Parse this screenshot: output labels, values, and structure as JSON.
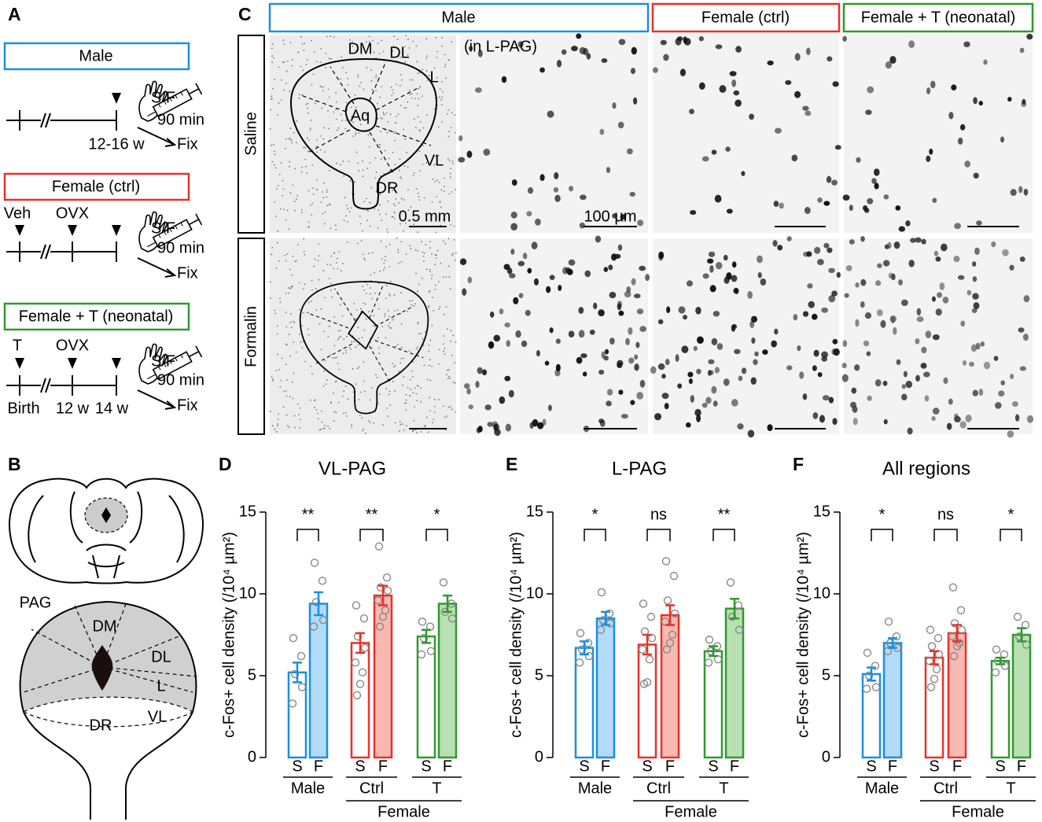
{
  "panel_a": {
    "label": "A",
    "timelines": [
      {
        "title": "Male",
        "above": [],
        "below": [
          "12-16 w"
        ],
        "stimulus": "S/F",
        "duration": "90 min",
        "fixation": "Fix"
      },
      {
        "title": "Female (ctrl)",
        "above": [
          "Veh",
          "OVX"
        ],
        "below": [],
        "stimulus": "S/F",
        "duration": "90 min",
        "fixation": "Fix"
      },
      {
        "title": "Female + T (neonatal)",
        "above": [
          "T",
          "OVX"
        ],
        "below": [
          "Birth",
          "12 w",
          "14 w"
        ],
        "stimulus": "S/F",
        "duration": "90 min",
        "fixation": "Fix"
      }
    ]
  },
  "panel_b": {
    "label": "B",
    "regions": [
      "PAG",
      "DM",
      "DL",
      "L",
      "VL",
      "DR"
    ]
  },
  "panel_c": {
    "label": "C",
    "columns": [
      "Male",
      "Female (ctrl)",
      "Female + T (neonatal)"
    ],
    "rows": [
      "Saline",
      "Formalin"
    ],
    "regions": [
      "DM",
      "DL",
      "L",
      "Aq",
      "VL",
      "DR"
    ],
    "inset": "(in L-PAG)",
    "scale_bars": [
      "0.5 mm",
      "100 µm"
    ]
  },
  "chart_data": [
    {
      "type": "bar",
      "panel": "D",
      "title": "VL-PAG",
      "y_label": "c-Fos+ cell density (/10⁴ µm²)",
      "categories": [
        "S",
        "F",
        "S",
        "F",
        "S",
        "F"
      ],
      "values": [
        5.2,
        9.4,
        7.0,
        9.9,
        7.4,
        9.4
      ],
      "errors": [
        0.6,
        0.7,
        0.6,
        0.6,
        0.4,
        0.5
      ],
      "points": [
        [
          7.3,
          6.2,
          5.1,
          4.3,
          3.3
        ],
        [
          11.9,
          10.8,
          9.5,
          8.4,
          8.0
        ],
        [
          9.3,
          8.5,
          7.4,
          6.7,
          5.8,
          5.2,
          4.5,
          3.8
        ],
        [
          12.9,
          11.0,
          10.4,
          10.2,
          9.6,
          9.0,
          8.6,
          8.0
        ],
        [
          8.3,
          8.0,
          7.3,
          6.5,
          6.3
        ],
        [
          10.7,
          9.4,
          8.9,
          8.5
        ]
      ],
      "group_labels": [
        "Male",
        "Ctrl",
        "T"
      ],
      "super_label": "Female",
      "significance": [
        "**",
        "**",
        "*"
      ],
      "group_colors": [
        "#1a8fe3",
        "#e8302a",
        "#2e9a2e"
      ],
      "fill_colors": [
        "#b3dbf7",
        "#f7b9b1",
        "#b9e0b2"
      ],
      "ylim": [
        0,
        15
      ],
      "yticks": [
        0,
        5,
        10,
        15
      ]
    },
    {
      "type": "bar",
      "panel": "E",
      "title": "L-PAG",
      "y_label": "c-Fos+ cell density (/10⁴ µm²)",
      "categories": [
        "S",
        "F",
        "S",
        "F",
        "S",
        "F"
      ],
      "values": [
        6.7,
        8.5,
        6.9,
        8.7,
        6.5,
        9.1
      ],
      "errors": [
        0.4,
        0.4,
        0.6,
        0.6,
        0.3,
        0.6
      ],
      "points": [
        [
          7.6,
          7.0,
          6.6,
          6.2,
          5.8
        ],
        [
          10.1,
          8.8,
          8.4,
          8.2,
          7.8
        ],
        [
          9.4,
          8.6,
          7.7,
          7.3,
          6.6,
          6.0,
          4.6,
          4.5
        ],
        [
          12.0,
          11.1,
          9.6,
          8.8,
          8.3,
          7.5,
          7.0,
          6.6
        ],
        [
          7.2,
          6.8,
          6.5,
          6.0,
          5.8
        ],
        [
          10.7,
          9.3,
          8.6,
          7.8
        ]
      ],
      "group_labels": [
        "Male",
        "Ctrl",
        "T"
      ],
      "super_label": "Female",
      "significance": [
        "*",
        "ns",
        "**"
      ],
      "group_colors": [
        "#1a8fe3",
        "#e8302a",
        "#2e9a2e"
      ],
      "fill_colors": [
        "#b3dbf7",
        "#f7b9b1",
        "#b9e0b2"
      ],
      "ylim": [
        0,
        15
      ],
      "yticks": [
        0,
        5,
        10,
        15
      ]
    },
    {
      "type": "bar",
      "panel": "F",
      "title": "All regions",
      "y_label": "c-Fos+ cell density (/10⁴ µm²)",
      "categories": [
        "S",
        "F",
        "S",
        "F",
        "S",
        "F"
      ],
      "values": [
        5.1,
        7.0,
        6.1,
        7.6,
        5.9,
        7.5
      ],
      "errors": [
        0.4,
        0.3,
        0.4,
        0.5,
        0.2,
        0.4
      ],
      "points": [
        [
          6.4,
          5.6,
          5.0,
          4.3,
          4.2
        ],
        [
          8.3,
          7.4,
          7.0,
          6.7,
          6.5
        ],
        [
          7.8,
          7.3,
          6.8,
          6.3,
          5.9,
          5.4,
          4.8,
          4.3
        ],
        [
          10.4,
          9.0,
          8.2,
          7.8,
          7.4,
          7.0,
          6.8,
          6.2
        ],
        [
          6.6,
          6.3,
          5.9,
          5.6,
          5.2
        ],
        [
          8.6,
          8.1,
          7.4,
          6.9
        ]
      ],
      "group_labels": [
        "Male",
        "Ctrl",
        "T"
      ],
      "super_label": "Female",
      "significance": [
        "*",
        "ns",
        "*"
      ],
      "group_colors": [
        "#1a8fe3",
        "#e8302a",
        "#2e9a2e"
      ],
      "fill_colors": [
        "#b3dbf7",
        "#f7b9b1",
        "#b9e0b2"
      ],
      "ylim": [
        0,
        15
      ],
      "yticks": [
        0,
        5,
        10,
        15
      ]
    }
  ]
}
